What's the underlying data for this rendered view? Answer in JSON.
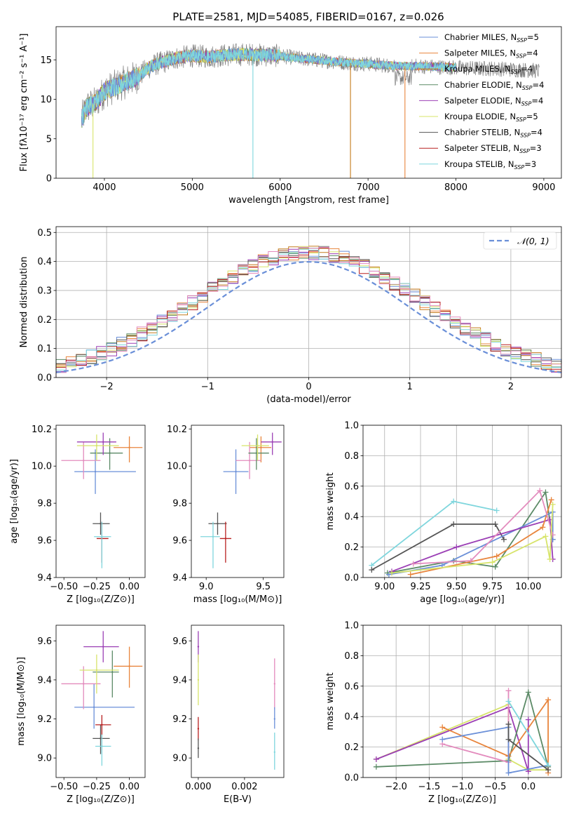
{
  "title": "PLATE=2581, MJD=54085, FIBERID=0167, z=0.026",
  "colors": {
    "c1": "#6a8fd8",
    "c2": "#e8853d",
    "c3": "#c47a1b",
    "c4": "#5b8a66",
    "c5": "#9b3fb5",
    "c6": "#d7e46a",
    "c7": "#555555",
    "c8": "#b82020",
    "c9": "#7fd6dd",
    "pink": "#e38bbd"
  },
  "chart_data": [
    {
      "id": "spectrum",
      "type": "line",
      "xlabel": "wavelength [Angstrom, rest frame]",
      "ylabel": "Flux [fλ10⁻¹⁷ erg cm⁻² s⁻¹ A⁻¹]",
      "xlim": [
        3450,
        9200
      ],
      "ylim": [
        0,
        19.2
      ],
      "xticks": [
        4000,
        5000,
        6000,
        7000,
        8000,
        9000
      ],
      "yticks": [
        0,
        5,
        10,
        15
      ],
      "legend_position": "top-right",
      "legend": [
        {
          "text": "Chabrier MILES, N",
          "sub": "SSP",
          "tail": "=5",
          "color": "c1"
        },
        {
          "text": "Salpeter MILES, N",
          "sub": "SSP",
          "tail": "=4",
          "color": "c2"
        },
        {
          "text": "Kroupa MILES, N",
          "sub": "SSP",
          "tail": "=4",
          "color": "c3"
        },
        {
          "text": "Chabrier ELODIE, N",
          "sub": "SSP",
          "tail": "=4",
          "color": "c4"
        },
        {
          "text": "Salpeter ELODIE, N",
          "sub": "SSP",
          "tail": "=4",
          "color": "c5"
        },
        {
          "text": "Kroupa ELODIE, N",
          "sub": "SSP",
          "tail": "=5",
          "color": "c6"
        },
        {
          "text": "Chabrier STELIB, N",
          "sub": "SSP",
          "tail": "=4",
          "color": "c7"
        },
        {
          "text": "Salpeter STELIB, N",
          "sub": "SSP",
          "tail": "=3",
          "color": "c8"
        },
        {
          "text": "Kroupa STELIB, N",
          "sub": "SSP",
          "tail": "=3",
          "color": "c9"
        }
      ],
      "continuum": [
        [
          3740,
          7.5
        ],
        [
          3800,
          9.0
        ],
        [
          3900,
          9.5
        ],
        [
          4000,
          11.0
        ],
        [
          4100,
          11.5
        ],
        [
          4200,
          12.0
        ],
        [
          4300,
          12.5
        ],
        [
          4400,
          13.0
        ],
        [
          4500,
          14.0
        ],
        [
          4600,
          14.5
        ],
        [
          4700,
          14.8
        ],
        [
          4800,
          15.2
        ],
        [
          5000,
          15.5
        ],
        [
          5200,
          15.4
        ],
        [
          5400,
          15.6
        ],
        [
          5600,
          15.7
        ],
        [
          5800,
          15.6
        ],
        [
          6000,
          15.5
        ],
        [
          6200,
          15.2
        ],
        [
          6400,
          15.0
        ],
        [
          6600,
          14.8
        ],
        [
          6800,
          14.6
        ],
        [
          7000,
          14.5
        ],
        [
          7200,
          14.3
        ],
        [
          7400,
          14.2
        ],
        [
          7600,
          14.2
        ],
        [
          7800,
          14.1
        ],
        [
          8000,
          14.0
        ],
        [
          8200,
          13.9
        ],
        [
          8400,
          13.9
        ],
        [
          8600,
          13.8
        ],
        [
          8800,
          13.7
        ],
        [
          8950,
          13.6
        ]
      ]
    },
    {
      "id": "residuals",
      "type": "histogram",
      "xlabel": "(data-model)/error",
      "ylabel": "Normed distribution",
      "xlim": [
        -2.5,
        2.5
      ],
      "ylim": [
        0,
        0.52
      ],
      "xticks": [
        -2,
        -1,
        0,
        1,
        2
      ],
      "yticks": [
        0.0,
        0.1,
        0.2,
        0.3,
        0.4,
        0.5
      ],
      "bin_width": 0.1,
      "legend_position": "top-right",
      "legend_label": "𝒩(0, 1)",
      "gaussian": {
        "mean": 0,
        "sigma": 1
      }
    },
    {
      "id": "age_vs_Z",
      "type": "scatter",
      "xlabel": "Z [log₁₀(Z/Z⊙)]",
      "ylabel": "age  [log₁₀(age/yr)]",
      "xlim": [
        -0.56,
        0.12
      ],
      "ylim": [
        9.4,
        10.22
      ],
      "xticks": [
        -0.5,
        -0.25,
        0.0
      ],
      "xtick_labels": [
        "−0.50",
        "−0.25",
        "0.00"
      ],
      "yticks": [
        9.4,
        9.6,
        9.8,
        10.0,
        10.2
      ],
      "ytick_labels": [
        "9.4",
        "9.6",
        "9.8",
        "10.0",
        "10.2"
      ],
      "points": [
        {
          "color": "c1",
          "x": -0.26,
          "y": 9.97,
          "x0": -0.42,
          "x1": 0.05,
          "y0": 9.85,
          "y1": 10.09
        },
        {
          "color": "c2",
          "x": 0.0,
          "y": 10.1,
          "x0": -0.12,
          "x1": 0.1,
          "y0": 10.02,
          "y1": 10.16
        },
        {
          "color": "pink",
          "x": -0.35,
          "y": 10.03,
          "x0": -0.52,
          "x1": -0.22,
          "y0": 9.93,
          "y1": 10.13
        },
        {
          "color": "c4",
          "x": -0.15,
          "y": 10.07,
          "x0": -0.3,
          "x1": -0.05,
          "y0": 9.98,
          "y1": 10.15
        },
        {
          "color": "c5",
          "x": -0.2,
          "y": 10.13,
          "x0": -0.4,
          "x1": -0.1,
          "y0": 10.06,
          "y1": 10.18
        },
        {
          "color": "c6",
          "x": -0.25,
          "y": 10.11,
          "x0": -0.4,
          "x1": -0.08,
          "y0": 10.03,
          "y1": 10.17
        },
        {
          "color": "c7",
          "x": -0.22,
          "y": 9.69,
          "x0": -0.28,
          "x1": -0.15,
          "y0": 9.63,
          "y1": 9.75
        },
        {
          "color": "c8",
          "x": -0.21,
          "y": 9.61,
          "x0": -0.25,
          "x1": -0.16,
          "y0": 9.48,
          "y1": 9.7
        },
        {
          "color": "c9",
          "x": -0.21,
          "y": 9.62,
          "x0": -0.27,
          "x1": -0.14,
          "y0": 9.45,
          "y1": 9.7
        }
      ]
    },
    {
      "id": "age_vs_mass",
      "type": "scatter",
      "xlabel": "mass [log₁₀(M/M⊙)]",
      "ylabel": "",
      "xlim": [
        8.87,
        9.68
      ],
      "ylim": [
        9.4,
        10.22
      ],
      "xticks": [
        9.0,
        9.5
      ],
      "xtick_labels": [
        "9.0",
        "9.5"
      ],
      "yticks": [
        9.4,
        9.6,
        9.8,
        10.0,
        10.2
      ],
      "ytick_labels": [
        "9.4",
        "9.6",
        "9.8",
        "10.0",
        "10.2"
      ],
      "points": [
        {
          "color": "c1",
          "x": 9.26,
          "y": 9.97,
          "x0": 9.15,
          "x1": 9.37,
          "y0": 9.85,
          "y1": 10.09
        },
        {
          "color": "c2",
          "x": 9.48,
          "y": 10.1,
          "x0": 9.38,
          "x1": 9.57,
          "y0": 10.02,
          "y1": 10.16
        },
        {
          "color": "pink",
          "x": 9.38,
          "y": 10.03,
          "x0": 9.26,
          "x1": 9.48,
          "y0": 9.93,
          "y1": 10.13
        },
        {
          "color": "c4",
          "x": 9.44,
          "y": 10.07,
          "x0": 9.37,
          "x1": 9.55,
          "y0": 9.98,
          "y1": 10.15
        },
        {
          "color": "c5",
          "x": 9.58,
          "y": 10.13,
          "x0": 9.48,
          "x1": 9.66,
          "y0": 10.06,
          "y1": 10.18
        },
        {
          "color": "c6",
          "x": 9.45,
          "y": 10.11,
          "x0": 9.31,
          "x1": 9.55,
          "y0": 10.03,
          "y1": 10.17
        },
        {
          "color": "c7",
          "x": 9.1,
          "y": 9.69,
          "x0": 9.02,
          "x1": 9.18,
          "y0": 9.63,
          "y1": 9.75
        },
        {
          "color": "c8",
          "x": 9.17,
          "y": 9.61,
          "x0": 9.12,
          "x1": 9.22,
          "y0": 9.48,
          "y1": 9.7
        },
        {
          "color": "c9",
          "x": 9.06,
          "y": 9.62,
          "x0": 8.95,
          "x1": 9.12,
          "y0": 9.45,
          "y1": 9.7
        }
      ]
    },
    {
      "id": "massweight_vs_age",
      "type": "line",
      "xlabel": "age  [log₁₀(age/yr)]",
      "ylabel": "mass weight",
      "grid": true,
      "xlim": [
        8.85,
        10.23
      ],
      "ylim": [
        0,
        1
      ],
      "xticks": [
        9.0,
        9.25,
        9.5,
        9.75,
        10.0
      ],
      "xtick_labels": [
        "9.00",
        "9.25",
        "9.50",
        "9.75",
        "10.00"
      ],
      "yticks": [
        0,
        0.2,
        0.4,
        0.6,
        0.8,
        1.0
      ],
      "ytick_labels": [
        "0.0",
        "0.2",
        "0.4",
        "0.6",
        "0.8",
        "1.0"
      ],
      "series": [
        {
          "color": "c9",
          "x": [
            8.91,
            9.48,
            9.78
          ],
          "y": [
            0.08,
            0.5,
            0.44
          ]
        },
        {
          "color": "c7",
          "x": [
            8.91,
            9.48,
            9.77,
            9.83
          ],
          "y": [
            0.05,
            0.35,
            0.35,
            0.25
          ]
        },
        {
          "color": "c4",
          "x": [
            9.02,
            9.48,
            9.77,
            10.12,
            10.17
          ],
          "y": [
            0.03,
            0.11,
            0.07,
            0.56,
            0.25
          ]
        },
        {
          "color": "c1",
          "x": [
            9.03,
            9.4,
            10.17,
            10.17
          ],
          "y": [
            0.02,
            0.08,
            0.43,
            0.25
          ]
        },
        {
          "color": "c5",
          "x": [
            9.05,
            9.5,
            10.15,
            10.17
          ],
          "y": [
            0.04,
            0.2,
            0.38,
            0.12
          ]
        },
        {
          "color": "c2",
          "x": [
            9.18,
            9.78,
            10.1,
            10.16
          ],
          "y": [
            0.02,
            0.14,
            0.33,
            0.51
          ]
        },
        {
          "color": "pink",
          "x": [
            9.2,
            9.6,
            10.08,
            10.17
          ],
          "y": [
            0.09,
            0.11,
            0.57,
            0.28
          ]
        },
        {
          "color": "c6",
          "x": [
            9.05,
            9.75,
            10.12,
            10.15,
            10.17
          ],
          "y": [
            0.03,
            0.1,
            0.27,
            0.12,
            0.48
          ]
        }
      ]
    },
    {
      "id": "mass_vs_Z",
      "type": "scatter",
      "xlabel": "Z [log₁₀(Z/Z⊙)]",
      "ylabel": "mass [log₁₀(M/M⊙)]",
      "xlim": [
        -0.56,
        0.12
      ],
      "ylim": [
        8.9,
        9.68
      ],
      "xticks": [
        -0.5,
        -0.25,
        0.0
      ],
      "xtick_labels": [
        "−0.50",
        "−0.25",
        "0.00"
      ],
      "yticks": [
        9.0,
        9.2,
        9.4,
        9.6
      ],
      "ytick_labels": [
        "9.0",
        "9.2",
        "9.4",
        "9.6"
      ],
      "points": [
        {
          "color": "c1",
          "x": -0.27,
          "y": 9.26,
          "x0": -0.42,
          "x1": 0.04,
          "y0": 9.15,
          "y1": 9.38
        },
        {
          "color": "c2",
          "x": 0.0,
          "y": 9.47,
          "x0": -0.12,
          "x1": 0.1,
          "y0": 9.36,
          "y1": 9.57
        },
        {
          "color": "pink",
          "x": -0.35,
          "y": 9.38,
          "x0": -0.52,
          "x1": -0.22,
          "y0": 9.25,
          "y1": 9.47
        },
        {
          "color": "c4",
          "x": -0.13,
          "y": 9.44,
          "x0": -0.28,
          "x1": -0.08,
          "y0": 9.31,
          "y1": 9.55
        },
        {
          "color": "c5",
          "x": -0.2,
          "y": 9.57,
          "x0": -0.35,
          "x1": -0.08,
          "y0": 9.49,
          "y1": 9.65
        },
        {
          "color": "c6",
          "x": -0.25,
          "y": 9.45,
          "x0": -0.38,
          "x1": -0.08,
          "y0": 9.33,
          "y1": 9.53
        },
        {
          "color": "c7",
          "x": -0.22,
          "y": 9.1,
          "x0": -0.28,
          "x1": -0.15,
          "y0": 9.02,
          "y1": 9.17
        },
        {
          "color": "c8",
          "x": -0.21,
          "y": 9.17,
          "x0": -0.26,
          "x1": -0.14,
          "y0": 9.1,
          "y1": 9.22
        },
        {
          "color": "c9",
          "x": -0.21,
          "y": 9.06,
          "x0": -0.26,
          "x1": -0.14,
          "y0": 8.96,
          "y1": 9.12
        }
      ]
    },
    {
      "id": "mass_vs_EBV",
      "type": "scatter",
      "xlabel": "E(B-V)",
      "ylabel": "",
      "xlim": [
        -0.0003,
        0.0037
      ],
      "ylim": [
        8.9,
        9.68
      ],
      "xticks": [
        0.0,
        0.002
      ],
      "xtick_labels": [
        "0.000",
        "0.002"
      ],
      "yticks": [
        9.0,
        9.2,
        9.4,
        9.6
      ],
      "ytick_labels": [
        "9.0",
        "9.2",
        "9.4",
        "9.6"
      ],
      "points": [
        {
          "color": "c5",
          "x": 0.0,
          "y": 9.57,
          "y0": 9.49,
          "y1": 9.65
        },
        {
          "color": "c6",
          "x": 0.0,
          "y": 9.4,
          "y0": 9.27,
          "y1": 9.53
        },
        {
          "color": "c8",
          "x": 0.0,
          "y": 9.15,
          "y0": 9.09,
          "y1": 9.21
        },
        {
          "color": "c7",
          "x": 0.0,
          "y": 9.05,
          "y0": 9.0,
          "y1": 9.1
        },
        {
          "color": "pink",
          "x": 0.0033,
          "y": 9.38,
          "y0": 9.25,
          "y1": 9.51
        },
        {
          "color": "c1",
          "x": 0.0033,
          "y": 9.2,
          "y0": 9.15,
          "y1": 9.26
        },
        {
          "color": "c9",
          "x": 0.0033,
          "y": 9.03,
          "y0": 8.94,
          "y1": 9.13
        }
      ]
    },
    {
      "id": "massweight_vs_Z",
      "type": "line",
      "xlabel": "Z [log₁₀(Z/Z⊙)]",
      "ylabel": "mass weight",
      "grid": true,
      "xlim": [
        -2.5,
        0.5
      ],
      "ylim": [
        0,
        1
      ],
      "xticks": [
        -2.0,
        -1.5,
        -1.0,
        -0.5,
        0.0
      ],
      "xtick_labels": [
        "−2.0",
        "−1.5",
        "−1.0",
        "−0.5",
        "0.0"
      ],
      "yticks": [
        0,
        0.2,
        0.4,
        0.6,
        0.8,
        1.0
      ],
      "ytick_labels": [
        "0.0",
        "0.2",
        "0.4",
        "0.6",
        "0.8",
        "1.0"
      ],
      "series": [
        {
          "color": "c6",
          "x": [
            -2.3,
            -0.3,
            -0.3,
            0.0,
            0.3
          ],
          "y": [
            0.12,
            0.48,
            0.12,
            0.05,
            0.05
          ]
        },
        {
          "color": "c5",
          "x": [
            -2.3,
            -0.3,
            0.0,
            0.0
          ],
          "y": [
            0.12,
            0.46,
            0.04,
            0.38
          ]
        },
        {
          "color": "c4",
          "x": [
            -2.3,
            -0.3,
            0.0,
            0.3
          ],
          "y": [
            0.07,
            0.11,
            0.56,
            0.07
          ]
        },
        {
          "color": "c2",
          "x": [
            -1.3,
            -0.3,
            0.3,
            0.3
          ],
          "y": [
            0.33,
            0.14,
            0.51,
            0.03
          ]
        },
        {
          "color": "pink",
          "x": [
            -1.3,
            -0.3,
            -0.3
          ],
          "y": [
            0.22,
            0.1,
            0.57
          ]
        },
        {
          "color": "c1",
          "x": [
            -1.3,
            -0.3,
            -0.3,
            0.3
          ],
          "y": [
            0.25,
            0.33,
            0.03,
            0.08
          ]
        },
        {
          "color": "c9",
          "x": [
            -0.3,
            0.3
          ],
          "y": [
            0.5,
            0.08
          ]
        },
        {
          "color": "c7",
          "x": [
            -0.3,
            -0.3,
            0.3
          ],
          "y": [
            0.35,
            0.25,
            0.05
          ]
        }
      ]
    }
  ]
}
